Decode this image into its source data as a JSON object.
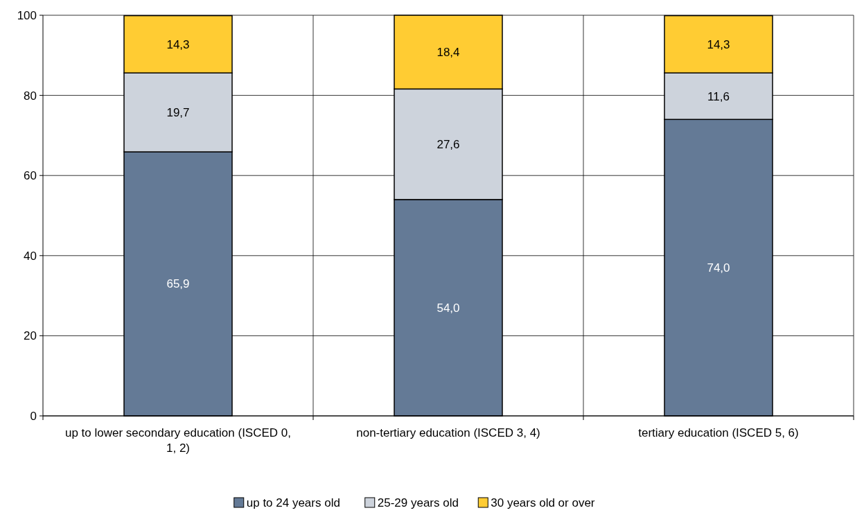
{
  "chart_data": {
    "type": "bar",
    "stacked": true,
    "categories": [
      "up to lower secondary education (ISCED 0, 1, 2)",
      "non-tertiary education (ISCED 3, 4)",
      "tertiary education (ISCED 5, 6)"
    ],
    "series": [
      {
        "name": "up to 24 years old",
        "color": "#647a96",
        "values": [
          65.9,
          54.0,
          74.0
        ],
        "value_labels": [
          "65,9",
          "54,0",
          "74,0"
        ]
      },
      {
        "name": "25-29 years old",
        "color": "#cdd3dc",
        "values": [
          19.7,
          27.6,
          11.6
        ],
        "value_labels": [
          "19,7",
          "27,6",
          "11,6"
        ]
      },
      {
        "name": "30 years old or over",
        "color": "#ffcc33",
        "values": [
          14.3,
          18.4,
          14.3
        ],
        "value_labels": [
          "14,3",
          "18,4",
          "14,3"
        ]
      }
    ],
    "ylim": [
      0,
      100
    ],
    "yticks": [
      0,
      20,
      40,
      60,
      80,
      100
    ],
    "grid": true,
    "legend": "bottom"
  }
}
